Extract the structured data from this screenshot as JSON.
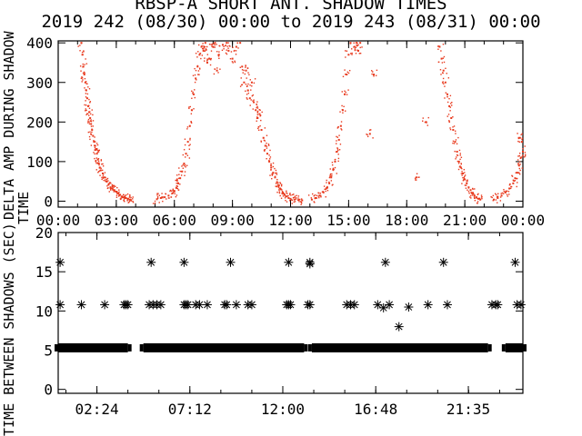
{
  "title_line1": "RBSP-A SHORT ANT. SHADOW TIMES",
  "title_line2": "2019 242 (08/30) 00:00 to 2019 243 (08/31) 00:00",
  "colors": {
    "top_series": "#e8391d",
    "bottom_series": "#000000"
  },
  "chart_data": [
    {
      "type": "scatter",
      "panel": "top",
      "ylabel": "DELTA AMP DURING SHADOW",
      "ylabel_overlap": "TIME",
      "ylim": [
        -15,
        405
      ],
      "yticks": [
        0,
        100,
        200,
        300,
        400
      ],
      "xlim": [
        0,
        24
      ],
      "xtick_labels": [
        "00:00",
        "03:00",
        "06:00",
        "09:00",
        "12:00",
        "15:00",
        "18:00",
        "21:00",
        "00:00"
      ],
      "series": [
        {
          "color": "#e8391d",
          "points": [
            [
              1.2,
              400
            ],
            [
              1.25,
              370
            ],
            [
              1.3,
              340
            ],
            [
              1.35,
              320
            ],
            [
              1.4,
              300
            ],
            [
              1.45,
              280
            ],
            [
              1.5,
              260
            ],
            [
              1.55,
              240
            ],
            [
              1.6,
              225
            ],
            [
              1.65,
              210
            ],
            [
              1.7,
              195
            ],
            [
              1.75,
              180
            ],
            [
              1.8,
              165
            ],
            [
              1.85,
              150
            ],
            [
              1.9,
              140
            ],
            [
              1.95,
              130
            ],
            [
              2.0,
              120
            ],
            [
              2.05,
              105
            ],
            [
              2.1,
              95
            ],
            [
              2.15,
              85
            ],
            [
              2.2,
              78
            ],
            [
              2.3,
              70
            ],
            [
              2.4,
              60
            ],
            [
              2.5,
              50
            ],
            [
              2.6,
              42
            ],
            [
              2.7,
              35
            ],
            [
              2.8,
              32
            ],
            [
              2.9,
              28
            ],
            [
              3.0,
              24
            ],
            [
              3.1,
              20
            ],
            [
              3.2,
              16
            ],
            [
              3.3,
              12
            ],
            [
              3.4,
              10
            ],
            [
              3.5,
              8
            ],
            [
              3.6,
              6
            ],
            [
              3.7,
              4
            ],
            [
              3.75,
              3
            ],
            [
              5.1,
              5
            ],
            [
              5.3,
              8
            ],
            [
              5.5,
              10
            ],
            [
              5.7,
              14
            ],
            [
              5.9,
              20
            ],
            [
              6.0,
              26
            ],
            [
              6.1,
              34
            ],
            [
              6.2,
              45
            ],
            [
              6.3,
              58
            ],
            [
              6.4,
              75
            ],
            [
              6.5,
              95
            ],
            [
              6.6,
              120
            ],
            [
              6.7,
              150
            ],
            [
              6.8,
              190
            ],
            [
              6.9,
              230
            ],
            [
              7.0,
              270
            ],
            [
              7.1,
              310
            ],
            [
              7.2,
              340
            ],
            [
              7.3,
              370
            ],
            [
              7.4,
              390
            ],
            [
              7.5,
              380
            ],
            [
              7.6,
              400
            ],
            [
              7.7,
              350
            ],
            [
              7.8,
              360
            ],
            [
              8.0,
              390
            ],
            [
              8.1,
              400
            ],
            [
              8.2,
              330
            ],
            [
              8.3,
              370
            ],
            [
              8.5,
              395
            ],
            [
              8.7,
              400
            ],
            [
              8.8,
              380
            ],
            [
              9.0,
              360
            ],
            [
              9.2,
              390
            ],
            [
              9.4,
              400
            ],
            [
              9.5,
              340
            ],
            [
              9.6,
              300
            ],
            [
              9.7,
              330
            ],
            [
              9.8,
              280
            ],
            [
              9.9,
              260
            ],
            [
              10.0,
              300
            ],
            [
              10.1,
              250
            ],
            [
              10.2,
              230
            ],
            [
              10.3,
              210
            ],
            [
              10.4,
              220
            ],
            [
              10.5,
              180
            ],
            [
              10.6,
              160
            ],
            [
              10.7,
              140
            ],
            [
              10.8,
              120
            ],
            [
              10.9,
              100
            ],
            [
              11.0,
              85
            ],
            [
              11.1,
              72
            ],
            [
              11.2,
              60
            ],
            [
              11.3,
              48
            ],
            [
              11.4,
              40
            ],
            [
              11.5,
              30
            ],
            [
              11.6,
              22
            ],
            [
              11.7,
              16
            ],
            [
              11.8,
              12
            ],
            [
              11.9,
              8
            ],
            [
              12.0,
              6
            ],
            [
              12.2,
              4
            ],
            [
              12.4,
              3
            ],
            [
              12.6,
              2
            ],
            [
              13.1,
              4
            ],
            [
              13.3,
              8
            ],
            [
              13.5,
              14
            ],
            [
              13.7,
              22
            ],
            [
              13.9,
              34
            ],
            [
              14.0,
              45
            ],
            [
              14.1,
              60
            ],
            [
              14.2,
              80
            ],
            [
              14.3,
              100
            ],
            [
              14.4,
              125
            ],
            [
              14.5,
              155
            ],
            [
              14.6,
              190
            ],
            [
              14.7,
              230
            ],
            [
              14.8,
              270
            ],
            [
              14.9,
              320
            ],
            [
              15.0,
              370
            ],
            [
              15.1,
              400
            ],
            [
              15.3,
              390
            ],
            [
              15.4,
              400
            ],
            [
              15.5,
              380
            ],
            [
              15.6,
              400
            ],
            [
              16.1,
              170
            ],
            [
              16.3,
              320
            ],
            [
              18.5,
              60
            ],
            [
              19.0,
              200
            ],
            [
              19.7,
              390
            ],
            [
              19.8,
              360
            ],
            [
              19.9,
              330
            ],
            [
              20.0,
              300
            ],
            [
              20.1,
              270
            ],
            [
              20.2,
              240
            ],
            [
              20.3,
              210
            ],
            [
              20.4,
              180
            ],
            [
              20.5,
              150
            ],
            [
              20.6,
              125
            ],
            [
              20.7,
              100
            ],
            [
              20.8,
              85
            ],
            [
              20.9,
              70
            ],
            [
              21.0,
              55
            ],
            [
              21.1,
              45
            ],
            [
              21.2,
              35
            ],
            [
              21.3,
              28
            ],
            [
              21.4,
              20
            ],
            [
              21.5,
              14
            ],
            [
              21.6,
              10
            ],
            [
              21.7,
              6
            ],
            [
              21.8,
              4
            ],
            [
              22.5,
              4
            ],
            [
              22.7,
              8
            ],
            [
              22.9,
              14
            ],
            [
              23.1,
              22
            ],
            [
              23.3,
              32
            ],
            [
              23.5,
              45
            ],
            [
              23.6,
              58
            ],
            [
              23.7,
              72
            ],
            [
              23.8,
              90
            ],
            [
              23.9,
              110
            ],
            [
              24.0,
              125
            ],
            [
              23.95,
              150
            ],
            [
              23.85,
              160
            ]
          ]
        }
      ]
    },
    {
      "type": "scatter",
      "panel": "bottom",
      "ylabel": "TIME BETWEEN SHADOWS (SEC)",
      "ylim": [
        -0.5,
        20
      ],
      "yticks": [
        0,
        5,
        10,
        15,
        20
      ],
      "xlim": [
        0.4,
        24.4
      ],
      "xticks": [
        2.4,
        7.2,
        12.0,
        16.8,
        21.583
      ],
      "xtick_labels": [
        "02:24",
        "07:12",
        "12:00",
        "16:48",
        "21:35"
      ],
      "dense_band": {
        "y": 5.3,
        "ranges": [
          [
            0.4,
            4.0
          ],
          [
            4.8,
            13.1
          ],
          [
            13.5,
            22.6
          ],
          [
            23.5,
            24.4
          ]
        ]
      },
      "series": [
        {
          "color": "#000000",
          "points": [
            [
              0.5,
              16.2
            ],
            [
              0.5,
              10.8
            ],
            [
              1.6,
              10.8
            ],
            [
              2.8,
              10.8
            ],
            [
              3.8,
              10.8
            ],
            [
              3.9,
              10.8
            ],
            [
              4.0,
              10.8
            ],
            [
              5.2,
              16.2
            ],
            [
              5.1,
              10.8
            ],
            [
              5.3,
              10.8
            ],
            [
              5.5,
              10.8
            ],
            [
              5.7,
              10.8
            ],
            [
              6.9,
              16.2
            ],
            [
              6.9,
              10.8
            ],
            [
              7.0,
              10.8
            ],
            [
              7.1,
              10.8
            ],
            [
              7.5,
              10.8
            ],
            [
              7.7,
              10.8
            ],
            [
              8.1,
              10.8
            ],
            [
              9.3,
              16.2
            ],
            [
              9.0,
              10.8
            ],
            [
              9.1,
              10.8
            ],
            [
              9.6,
              10.8
            ],
            [
              10.2,
              10.8
            ],
            [
              10.4,
              10.8
            ],
            [
              12.3,
              16.2
            ],
            [
              12.2,
              10.8
            ],
            [
              12.3,
              10.8
            ],
            [
              12.4,
              10.8
            ],
            [
              13.4,
              16.2
            ],
            [
              13.4,
              16.0
            ],
            [
              13.3,
              10.8
            ],
            [
              13.4,
              10.8
            ],
            [
              15.3,
              10.8
            ],
            [
              15.5,
              10.8
            ],
            [
              15.7,
              10.8
            ],
            [
              16.9,
              10.8
            ],
            [
              17.3,
              16.2
            ],
            [
              17.2,
              10.4
            ],
            [
              17.5,
              10.8
            ],
            [
              18.0,
              8.0
            ],
            [
              18.5,
              10.5
            ],
            [
              19.5,
              10.8
            ],
            [
              20.3,
              16.2
            ],
            [
              20.5,
              10.8
            ],
            [
              22.8,
              10.8
            ],
            [
              23.0,
              10.8
            ],
            [
              23.1,
              10.8
            ],
            [
              24.0,
              16.2
            ],
            [
              24.1,
              10.8
            ],
            [
              24.3,
              10.8
            ],
            [
              18.2,
              5.6
            ],
            [
              18.5,
              5.6
            ],
            [
              18.9,
              5.6
            ],
            [
              19.3,
              5.6
            ],
            [
              19.7,
              5.6
            ],
            [
              20.0,
              5.6
            ],
            [
              20.4,
              5.6
            ],
            [
              14.2,
              5.6
            ]
          ]
        }
      ]
    }
  ]
}
